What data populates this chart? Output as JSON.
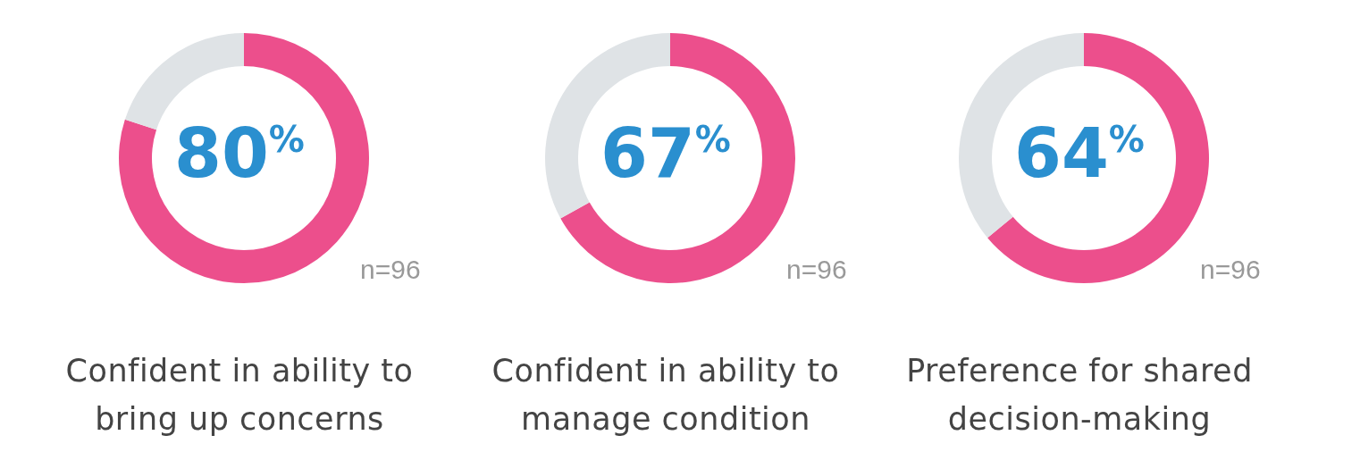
{
  "chart_data": [
    {
      "type": "donut",
      "title": "Confident in ability to bring up concerns",
      "categories": [
        null,
        null
      ],
      "values": [
        80,
        20
      ],
      "colors": [
        "#ec4f8c",
        "#dfe3e6"
      ],
      "annotations": [
        "80$^{%}$",
        "n=96"
      ]
    },
    {
      "type": "donut",
      "title": "Confident in ability to manage condition",
      "categories": [
        null,
        null
      ],
      "values": [
        67,
        33
      ],
      "colors": [
        "#ec4f8c",
        "#dfe3e6"
      ],
      "annotations": [
        "67$^{%}$",
        "n=96"
      ]
    },
    {
      "type": "donut",
      "title": "Preference for shared decision-making",
      "categories": [
        null,
        null
      ],
      "values": [
        64,
        36
      ],
      "colors": [
        "#ec4f8c",
        "#dfe3e6"
      ],
      "annotations": [
        "64$^{%}$",
        "n=96"
      ]
    }
  ]
}
